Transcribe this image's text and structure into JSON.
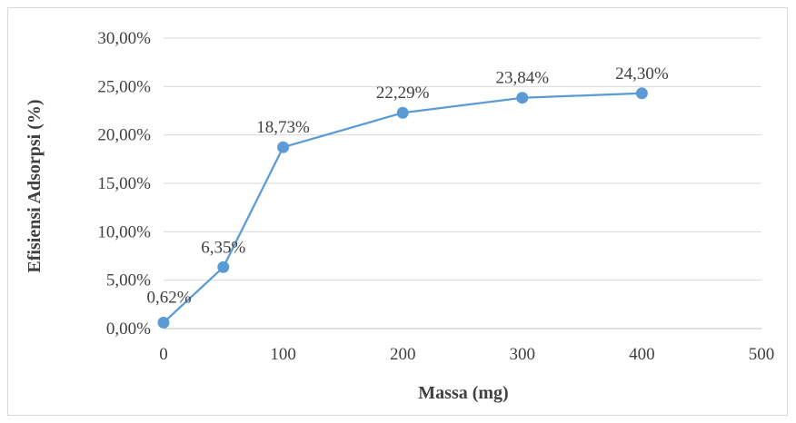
{
  "chart_data": {
    "type": "line",
    "title": "",
    "xlabel": "Massa (mg)",
    "ylabel": "Efisiensi Adsorpsi (%)",
    "xlim": [
      0,
      500
    ],
    "ylim": [
      0,
      30
    ],
    "x_ticks": [
      0,
      100,
      200,
      300,
      400,
      500
    ],
    "x_tick_labels": [
      "0",
      "100",
      "200",
      "300",
      "400",
      "500"
    ],
    "y_ticks": [
      0,
      5,
      10,
      15,
      20,
      25,
      30
    ],
    "y_tick_labels": [
      "0,00%",
      "5,00%",
      "10,00%",
      "15,00%",
      "20,00%",
      "25,00%",
      "30,00%"
    ],
    "grid": "horizontal",
    "legend": "none",
    "series": [
      {
        "color": "#5b9bd5",
        "x": [
          0,
          50,
          100,
          200,
          300,
          400
        ],
        "y": [
          0.62,
          6.35,
          18.73,
          22.29,
          23.84,
          24.3
        ],
        "labels": [
          "0,62%",
          "6,35%",
          "18,73%",
          "22,29%",
          "23,84%",
          "24,30%"
        ]
      }
    ]
  }
}
